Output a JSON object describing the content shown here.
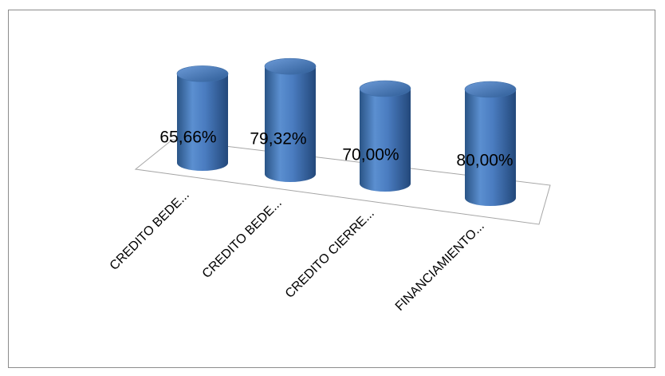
{
  "chart_data": {
    "type": "bar",
    "style": "3d-cylinder",
    "categories": [
      "CREDITO BEDE...",
      "CREDITO BEDE...",
      "CREDITO CIERRE...",
      "FINANCIAMIENTO..."
    ],
    "values": [
      65.66,
      79.32,
      70.0,
      80.0
    ],
    "value_labels": [
      "65,66%",
      "79,32%",
      "70,00%",
      "80,00%"
    ],
    "unit": "%",
    "title": "",
    "xlabel": "",
    "ylabel": "",
    "grid": false,
    "legend": "none",
    "colors": {
      "bar": "#4f81bd",
      "bar_dark": "#2a5486",
      "bar_light": "#8fb4e3",
      "floor": "#a6a6a6"
    }
  }
}
